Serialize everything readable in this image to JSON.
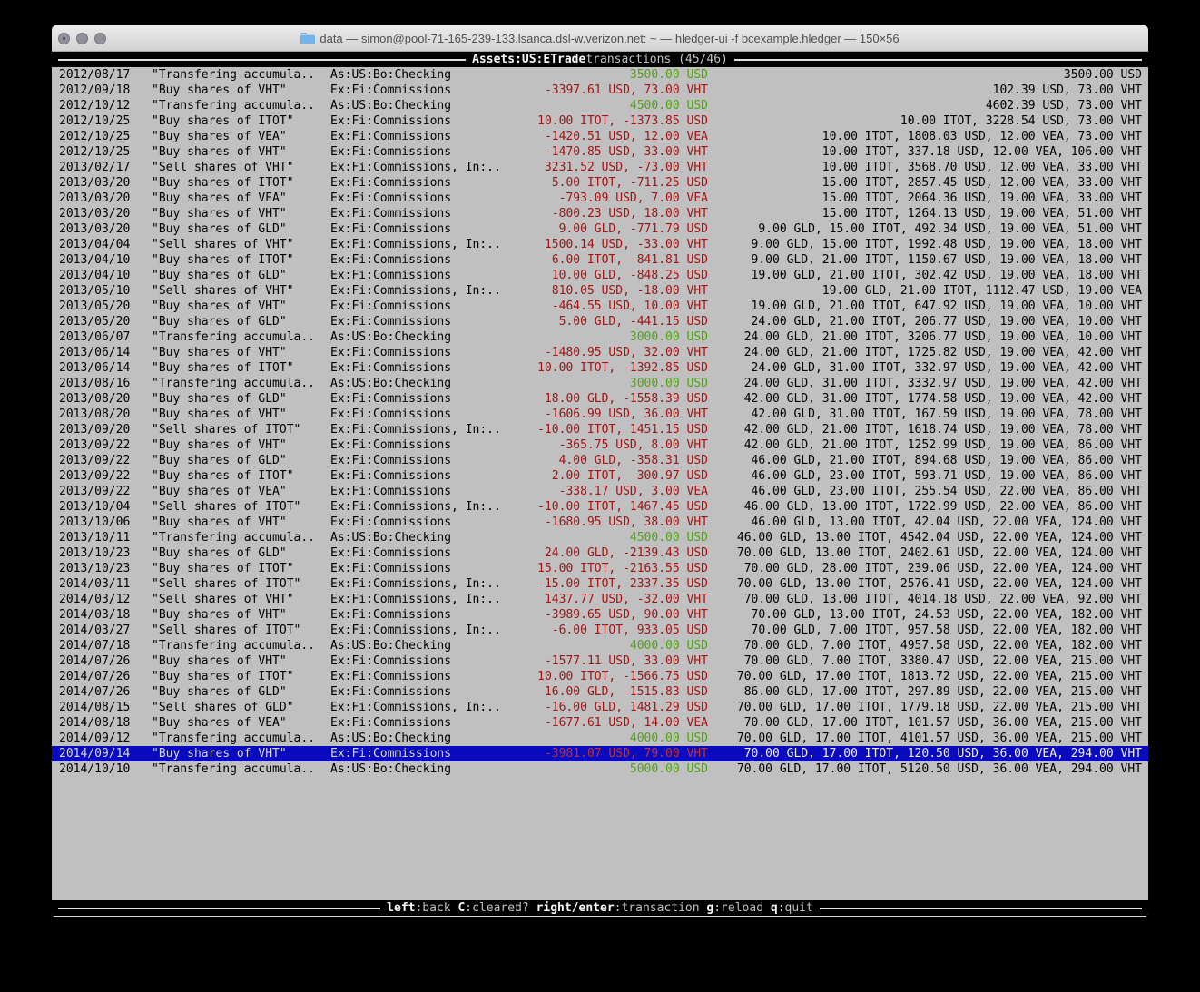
{
  "window": {
    "title": "data — simon@pool-71-165-239-133.lsanca.dsl-w.verizon.net: ~ — hledger-ui -f bcexample.hledger — 150×56",
    "proxy_icon": "folder-icon",
    "traffic_lights": [
      {
        "name": "close-button",
        "state": "inactive"
      },
      {
        "name": "minimize-button",
        "state": "inactive"
      },
      {
        "name": "zoom-button",
        "state": "inactive"
      }
    ]
  },
  "header": {
    "account": "Assets:US:ETrade",
    "rest": " transactions (45/46)"
  },
  "footer": {
    "keys": [
      {
        "key": "left",
        "desc": ":back"
      },
      {
        "key": "C",
        "desc": ":cleared?"
      },
      {
        "key": "right/enter",
        "desc": ":transaction"
      },
      {
        "key": "g",
        "desc": ":reload"
      },
      {
        "key": "q",
        "desc": ":quit"
      }
    ]
  },
  "colors": {
    "terminal_bg": "#c0c0c0",
    "bar_bg": "#000000",
    "bar_line": "#e2e2e2",
    "bar_text_bold": "#f8f8f8",
    "bar_text_dim": "#c2c2c2",
    "text": "#000000",
    "green": "#4fa412",
    "red": "#a31414",
    "selection_bg": "#0a0abf",
    "selection_fg": "#d6d6d6",
    "selection_balance": "#ededed",
    "selection_red": "#c43030",
    "titlebar_top": "#ebebeb",
    "titlebar_bottom": "#d2d2d2",
    "titlebar_text": "#4f4f4f",
    "traffic_fill": "#90909a",
    "folder_blue": "#74b3e8"
  },
  "register": {
    "rows": [
      {
        "date": "2012/08/17",
        "description": "\"Transfering accumula..",
        "account": "As:US:Bo:Checking",
        "change": "3500.00 USD",
        "change_color": "green",
        "balance": "3500.00 USD",
        "selected": false
      },
      {
        "date": "2012/09/18",
        "description": "\"Buy shares of VHT\"",
        "account": "Ex:Fi:Commissions",
        "change": "-3397.61 USD, 73.00 VHT",
        "change_color": "red",
        "balance": "102.39 USD, 73.00 VHT",
        "selected": false
      },
      {
        "date": "2012/10/12",
        "description": "\"Transfering accumula..",
        "account": "As:US:Bo:Checking",
        "change": "4500.00 USD",
        "change_color": "green",
        "balance": "4602.39 USD, 73.00 VHT",
        "selected": false
      },
      {
        "date": "2012/10/25",
        "description": "\"Buy shares of ITOT\"",
        "account": "Ex:Fi:Commissions",
        "change": "10.00 ITOT, -1373.85 USD",
        "change_color": "red",
        "balance": "10.00 ITOT, 3228.54 USD, 73.00 VHT",
        "selected": false
      },
      {
        "date": "2012/10/25",
        "description": "\"Buy shares of VEA\"",
        "account": "Ex:Fi:Commissions",
        "change": "-1420.51 USD, 12.00 VEA",
        "change_color": "red",
        "balance": "10.00 ITOT, 1808.03 USD, 12.00 VEA, 73.00 VHT",
        "selected": false
      },
      {
        "date": "2012/10/25",
        "description": "\"Buy shares of VHT\"",
        "account": "Ex:Fi:Commissions",
        "change": "-1470.85 USD, 33.00 VHT",
        "change_color": "red",
        "balance": "10.00 ITOT, 337.18 USD, 12.00 VEA, 106.00 VHT",
        "selected": false
      },
      {
        "date": "2013/02/17",
        "description": "\"Sell shares of VHT\"",
        "account": "Ex:Fi:Commissions, In:..",
        "change": "3231.52 USD, -73.00 VHT",
        "change_color": "red",
        "balance": "10.00 ITOT, 3568.70 USD, 12.00 VEA, 33.00 VHT",
        "selected": false
      },
      {
        "date": "2013/03/20",
        "description": "\"Buy shares of ITOT\"",
        "account": "Ex:Fi:Commissions",
        "change": "5.00 ITOT, -711.25 USD",
        "change_color": "red",
        "balance": "15.00 ITOT, 2857.45 USD, 12.00 VEA, 33.00 VHT",
        "selected": false
      },
      {
        "date": "2013/03/20",
        "description": "\"Buy shares of VEA\"",
        "account": "Ex:Fi:Commissions",
        "change": "-793.09 USD, 7.00 VEA",
        "change_color": "red",
        "balance": "15.00 ITOT, 2064.36 USD, 19.00 VEA, 33.00 VHT",
        "selected": false
      },
      {
        "date": "2013/03/20",
        "description": "\"Buy shares of VHT\"",
        "account": "Ex:Fi:Commissions",
        "change": "-800.23 USD, 18.00 VHT",
        "change_color": "red",
        "balance": "15.00 ITOT, 1264.13 USD, 19.00 VEA, 51.00 VHT",
        "selected": false
      },
      {
        "date": "2013/03/20",
        "description": "\"Buy shares of GLD\"",
        "account": "Ex:Fi:Commissions",
        "change": "9.00 GLD, -771.79 USD",
        "change_color": "red",
        "balance": "9.00 GLD, 15.00 ITOT, 492.34 USD, 19.00 VEA, 51.00 VHT",
        "selected": false
      },
      {
        "date": "2013/04/04",
        "description": "\"Sell shares of VHT\"",
        "account": "Ex:Fi:Commissions, In:..",
        "change": "1500.14 USD, -33.00 VHT",
        "change_color": "red",
        "balance": "9.00 GLD, 15.00 ITOT, 1992.48 USD, 19.00 VEA, 18.00 VHT",
        "selected": false
      },
      {
        "date": "2013/04/10",
        "description": "\"Buy shares of ITOT\"",
        "account": "Ex:Fi:Commissions",
        "change": "6.00 ITOT, -841.81 USD",
        "change_color": "red",
        "balance": "9.00 GLD, 21.00 ITOT, 1150.67 USD, 19.00 VEA, 18.00 VHT",
        "selected": false
      },
      {
        "date": "2013/04/10",
        "description": "\"Buy shares of GLD\"",
        "account": "Ex:Fi:Commissions",
        "change": "10.00 GLD, -848.25 USD",
        "change_color": "red",
        "balance": "19.00 GLD, 21.00 ITOT, 302.42 USD, 19.00 VEA, 18.00 VHT",
        "selected": false
      },
      {
        "date": "2013/05/10",
        "description": "\"Sell shares of VHT\"",
        "account": "Ex:Fi:Commissions, In:..",
        "change": "810.05 USD, -18.00 VHT",
        "change_color": "red",
        "balance": "19.00 GLD, 21.00 ITOT, 1112.47 USD, 19.00 VEA",
        "selected": false
      },
      {
        "date": "2013/05/20",
        "description": "\"Buy shares of VHT\"",
        "account": "Ex:Fi:Commissions",
        "change": "-464.55 USD, 10.00 VHT",
        "change_color": "red",
        "balance": "19.00 GLD, 21.00 ITOT, 647.92 USD, 19.00 VEA, 10.00 VHT",
        "selected": false
      },
      {
        "date": "2013/05/20",
        "description": "\"Buy shares of GLD\"",
        "account": "Ex:Fi:Commissions",
        "change": "5.00 GLD, -441.15 USD",
        "change_color": "red",
        "balance": "24.00 GLD, 21.00 ITOT, 206.77 USD, 19.00 VEA, 10.00 VHT",
        "selected": false
      },
      {
        "date": "2013/06/07",
        "description": "\"Transfering accumula..",
        "account": "As:US:Bo:Checking",
        "change": "3000.00 USD",
        "change_color": "green",
        "balance": "24.00 GLD, 21.00 ITOT, 3206.77 USD, 19.00 VEA, 10.00 VHT",
        "selected": false
      },
      {
        "date": "2013/06/14",
        "description": "\"Buy shares of VHT\"",
        "account": "Ex:Fi:Commissions",
        "change": "-1480.95 USD, 32.00 VHT",
        "change_color": "red",
        "balance": "24.00 GLD, 21.00 ITOT, 1725.82 USD, 19.00 VEA, 42.00 VHT",
        "selected": false
      },
      {
        "date": "2013/06/14",
        "description": "\"Buy shares of ITOT\"",
        "account": "Ex:Fi:Commissions",
        "change": "10.00 ITOT, -1392.85 USD",
        "change_color": "red",
        "balance": "24.00 GLD, 31.00 ITOT, 332.97 USD, 19.00 VEA, 42.00 VHT",
        "selected": false
      },
      {
        "date": "2013/08/16",
        "description": "\"Transfering accumula..",
        "account": "As:US:Bo:Checking",
        "change": "3000.00 USD",
        "change_color": "green",
        "balance": "24.00 GLD, 31.00 ITOT, 3332.97 USD, 19.00 VEA, 42.00 VHT",
        "selected": false
      },
      {
        "date": "2013/08/20",
        "description": "\"Buy shares of GLD\"",
        "account": "Ex:Fi:Commissions",
        "change": "18.00 GLD, -1558.39 USD",
        "change_color": "red",
        "balance": "42.00 GLD, 31.00 ITOT, 1774.58 USD, 19.00 VEA, 42.00 VHT",
        "selected": false
      },
      {
        "date": "2013/08/20",
        "description": "\"Buy shares of VHT\"",
        "account": "Ex:Fi:Commissions",
        "change": "-1606.99 USD, 36.00 VHT",
        "change_color": "red",
        "balance": "42.00 GLD, 31.00 ITOT, 167.59 USD, 19.00 VEA, 78.00 VHT",
        "selected": false
      },
      {
        "date": "2013/09/20",
        "description": "\"Sell shares of ITOT\"",
        "account": "Ex:Fi:Commissions, In:..",
        "change": "-10.00 ITOT, 1451.15 USD",
        "change_color": "red",
        "balance": "42.00 GLD, 21.00 ITOT, 1618.74 USD, 19.00 VEA, 78.00 VHT",
        "selected": false
      },
      {
        "date": "2013/09/22",
        "description": "\"Buy shares of VHT\"",
        "account": "Ex:Fi:Commissions",
        "change": "-365.75 USD, 8.00 VHT",
        "change_color": "red",
        "balance": "42.00 GLD, 21.00 ITOT, 1252.99 USD, 19.00 VEA, 86.00 VHT",
        "selected": false
      },
      {
        "date": "2013/09/22",
        "description": "\"Buy shares of GLD\"",
        "account": "Ex:Fi:Commissions",
        "change": "4.00 GLD, -358.31 USD",
        "change_color": "red",
        "balance": "46.00 GLD, 21.00 ITOT, 894.68 USD, 19.00 VEA, 86.00 VHT",
        "selected": false
      },
      {
        "date": "2013/09/22",
        "description": "\"Buy shares of ITOT\"",
        "account": "Ex:Fi:Commissions",
        "change": "2.00 ITOT, -300.97 USD",
        "change_color": "red",
        "balance": "46.00 GLD, 23.00 ITOT, 593.71 USD, 19.00 VEA, 86.00 VHT",
        "selected": false
      },
      {
        "date": "2013/09/22",
        "description": "\"Buy shares of VEA\"",
        "account": "Ex:Fi:Commissions",
        "change": "-338.17 USD, 3.00 VEA",
        "change_color": "red",
        "balance": "46.00 GLD, 23.00 ITOT, 255.54 USD, 22.00 VEA, 86.00 VHT",
        "selected": false
      },
      {
        "date": "2013/10/04",
        "description": "\"Sell shares of ITOT\"",
        "account": "Ex:Fi:Commissions, In:..",
        "change": "-10.00 ITOT, 1467.45 USD",
        "change_color": "red",
        "balance": "46.00 GLD, 13.00 ITOT, 1722.99 USD, 22.00 VEA, 86.00 VHT",
        "selected": false
      },
      {
        "date": "2013/10/06",
        "description": "\"Buy shares of VHT\"",
        "account": "Ex:Fi:Commissions",
        "change": "-1680.95 USD, 38.00 VHT",
        "change_color": "red",
        "balance": "46.00 GLD, 13.00 ITOT, 42.04 USD, 22.00 VEA, 124.00 VHT",
        "selected": false
      },
      {
        "date": "2013/10/11",
        "description": "\"Transfering accumula..",
        "account": "As:US:Bo:Checking",
        "change": "4500.00 USD",
        "change_color": "green",
        "balance": "46.00 GLD, 13.00 ITOT, 4542.04 USD, 22.00 VEA, 124.00 VHT",
        "selected": false
      },
      {
        "date": "2013/10/23",
        "description": "\"Buy shares of GLD\"",
        "account": "Ex:Fi:Commissions",
        "change": "24.00 GLD, -2139.43 USD",
        "change_color": "red",
        "balance": "70.00 GLD, 13.00 ITOT, 2402.61 USD, 22.00 VEA, 124.00 VHT",
        "selected": false
      },
      {
        "date": "2013/10/23",
        "description": "\"Buy shares of ITOT\"",
        "account": "Ex:Fi:Commissions",
        "change": "15.00 ITOT, -2163.55 USD",
        "change_color": "red",
        "balance": "70.00 GLD, 28.00 ITOT, 239.06 USD, 22.00 VEA, 124.00 VHT",
        "selected": false
      },
      {
        "date": "2014/03/11",
        "description": "\"Sell shares of ITOT\"",
        "account": "Ex:Fi:Commissions, In:..",
        "change": "-15.00 ITOT, 2337.35 USD",
        "change_color": "red",
        "balance": "70.00 GLD, 13.00 ITOT, 2576.41 USD, 22.00 VEA, 124.00 VHT",
        "selected": false
      },
      {
        "date": "2014/03/12",
        "description": "\"Sell shares of VHT\"",
        "account": "Ex:Fi:Commissions, In:..",
        "change": "1437.77 USD, -32.00 VHT",
        "change_color": "red",
        "balance": "70.00 GLD, 13.00 ITOT, 4014.18 USD, 22.00 VEA, 92.00 VHT",
        "selected": false
      },
      {
        "date": "2014/03/18",
        "description": "\"Buy shares of VHT\"",
        "account": "Ex:Fi:Commissions",
        "change": "-3989.65 USD, 90.00 VHT",
        "change_color": "red",
        "balance": "70.00 GLD, 13.00 ITOT, 24.53 USD, 22.00 VEA, 182.00 VHT",
        "selected": false
      },
      {
        "date": "2014/03/27",
        "description": "\"Sell shares of ITOT\"",
        "account": "Ex:Fi:Commissions, In:..",
        "change": "-6.00 ITOT, 933.05 USD",
        "change_color": "red",
        "balance": "70.00 GLD, 7.00 ITOT, 957.58 USD, 22.00 VEA, 182.00 VHT",
        "selected": false
      },
      {
        "date": "2014/07/18",
        "description": "\"Transfering accumula..",
        "account": "As:US:Bo:Checking",
        "change": "4000.00 USD",
        "change_color": "green",
        "balance": "70.00 GLD, 7.00 ITOT, 4957.58 USD, 22.00 VEA, 182.00 VHT",
        "selected": false
      },
      {
        "date": "2014/07/26",
        "description": "\"Buy shares of VHT\"",
        "account": "Ex:Fi:Commissions",
        "change": "-1577.11 USD, 33.00 VHT",
        "change_color": "red",
        "balance": "70.00 GLD, 7.00 ITOT, 3380.47 USD, 22.00 VEA, 215.00 VHT",
        "selected": false
      },
      {
        "date": "2014/07/26",
        "description": "\"Buy shares of ITOT\"",
        "account": "Ex:Fi:Commissions",
        "change": "10.00 ITOT, -1566.75 USD",
        "change_color": "red",
        "balance": "70.00 GLD, 17.00 ITOT, 1813.72 USD, 22.00 VEA, 215.00 VHT",
        "selected": false
      },
      {
        "date": "2014/07/26",
        "description": "\"Buy shares of GLD\"",
        "account": "Ex:Fi:Commissions",
        "change": "16.00 GLD, -1515.83 USD",
        "change_color": "red",
        "balance": "86.00 GLD, 17.00 ITOT, 297.89 USD, 22.00 VEA, 215.00 VHT",
        "selected": false
      },
      {
        "date": "2014/08/15",
        "description": "\"Sell shares of GLD\"",
        "account": "Ex:Fi:Commissions, In:..",
        "change": "-16.00 GLD, 1481.29 USD",
        "change_color": "red",
        "balance": "70.00 GLD, 17.00 ITOT, 1779.18 USD, 22.00 VEA, 215.00 VHT",
        "selected": false
      },
      {
        "date": "2014/08/18",
        "description": "\"Buy shares of VEA\"",
        "account": "Ex:Fi:Commissions",
        "change": "-1677.61 USD, 14.00 VEA",
        "change_color": "red",
        "balance": "70.00 GLD, 17.00 ITOT, 101.57 USD, 36.00 VEA, 215.00 VHT",
        "selected": false
      },
      {
        "date": "2014/09/12",
        "description": "\"Transfering accumula..",
        "account": "As:US:Bo:Checking",
        "change": "4000.00 USD",
        "change_color": "green",
        "balance": "70.00 GLD, 17.00 ITOT, 4101.57 USD, 36.00 VEA, 215.00 VHT",
        "selected": false
      },
      {
        "date": "2014/09/14",
        "description": "\"Buy shares of VHT\"",
        "account": "Ex:Fi:Commissions",
        "change": "-3981.07 USD, 79.00 VHT",
        "change_color": "red",
        "balance": "70.00 GLD, 17.00 ITOT, 120.50 USD, 36.00 VEA, 294.00 VHT",
        "selected": true
      },
      {
        "date": "2014/10/10",
        "description": "\"Transfering accumula..",
        "account": "As:US:Bo:Checking",
        "change": "5000.00 USD",
        "change_color": "green",
        "balance": "70.00 GLD, 17.00 ITOT, 5120.50 USD, 36.00 VEA, 294.00 VHT",
        "selected": false
      }
    ]
  }
}
